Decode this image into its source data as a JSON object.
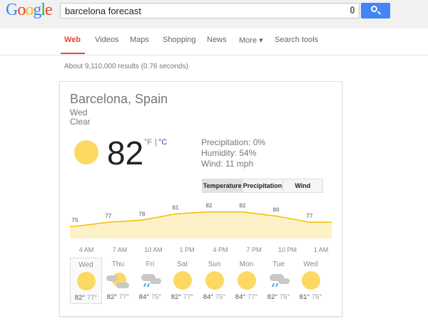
{
  "header": {
    "logo": "Google",
    "query": "barcelona forecast"
  },
  "nav": [
    {
      "label": "Web",
      "active": true
    },
    {
      "label": "Videos"
    },
    {
      "label": "Maps"
    },
    {
      "label": "Shopping"
    },
    {
      "label": "News"
    },
    {
      "label": "More ▾"
    },
    {
      "label": "Search tools"
    }
  ],
  "stats": "About 9,110,000 results (0.76 seconds)",
  "weather": {
    "location": "Barcelona, Spain",
    "day": "Wed",
    "condition": "Clear",
    "temp": "82",
    "unit_f": "°F",
    "unit_sep": "|",
    "unit_c": "°C",
    "precipitation": "Precipitation: 0%",
    "humidity": "Humidity: 54%",
    "wind": "Wind: 11 mph",
    "tabs": [
      "Temperature",
      "Precipitation",
      "Wind"
    ],
    "colors": {
      "sun": "#fcd963",
      "line": "#f4c20d",
      "fill": "#fdf1c7",
      "celsius": "#4b3fc3"
    }
  },
  "chart_data": {
    "type": "area",
    "temps": [
      75,
      77,
      78,
      81,
      82,
      82,
      80,
      77
    ],
    "hours": [
      "4 AM",
      "7 AM",
      "10 AM",
      "1 PM",
      "4 PM",
      "7 PM",
      "10 PM",
      "1 AM"
    ]
  },
  "forecast": [
    {
      "day": "Wed",
      "icon": "sun",
      "hi": "82°",
      "lo": "77°"
    },
    {
      "day": "Thu",
      "icon": "partly-cloudy",
      "hi": "82°",
      "lo": "77°"
    },
    {
      "day": "Fri",
      "icon": "rain",
      "hi": "84°",
      "lo": "75°"
    },
    {
      "day": "Sat",
      "icon": "sun",
      "hi": "82°",
      "lo": "77°"
    },
    {
      "day": "Sun",
      "icon": "sun",
      "hi": "84°",
      "lo": "75°"
    },
    {
      "day": "Mon",
      "icon": "sun",
      "hi": "84°",
      "lo": "77°"
    },
    {
      "day": "Tue",
      "icon": "rain",
      "hi": "82°",
      "lo": "75°"
    },
    {
      "day": "Wed",
      "icon": "sun",
      "hi": "81°",
      "lo": "75°"
    }
  ]
}
